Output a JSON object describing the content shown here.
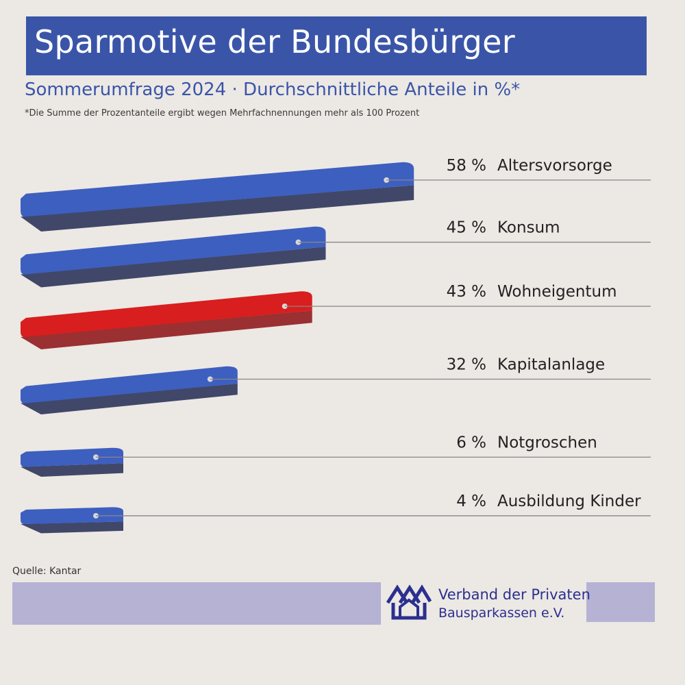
{
  "chart_data": {
    "type": "bar",
    "orientation": "horizontal",
    "title": "Sparmotive der Bundesbürger",
    "subtitle": "Sommerumfrage 2024 · Durchschnittliche Anteile in %*",
    "footnote": "*Die Summe der Prozentanteile ergibt wegen Mehrfachnennungen mehr als 100 Prozent",
    "categories": [
      "Altersvorsorge",
      "Konsum",
      "Wohneigentum",
      "Kapitalanlage",
      "Notgroschen",
      "Ausbildung Kinder"
    ],
    "values": [
      58,
      45,
      43,
      32,
      6,
      4
    ],
    "unit": "%",
    "highlight_category": "Wohneigentum",
    "grid": false,
    "legend": "none"
  },
  "source": "Quelle: Kantar",
  "org": {
    "line1": "Verband der Privaten",
    "line2": "Bausparkassen e.V.",
    "logo_icon": "houses-logo-icon"
  },
  "colors": {
    "bar": "#3d5fbf",
    "bar_highlight": "#d81e1e",
    "title_bar": "#3a55a8",
    "band": "#b5b2d4",
    "org_text": "#2b2f8f"
  }
}
